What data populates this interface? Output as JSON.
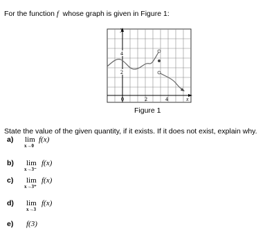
{
  "intro": {
    "before": "For the function",
    "var": "f",
    "after": "whose graph is given in Figure 1:"
  },
  "figure": {
    "y_label": "y",
    "x_label": "x",
    "y_ticks": [
      "4",
      "2"
    ],
    "x_ticks": [
      "0",
      "2",
      "4"
    ],
    "caption": "Figure 1"
  },
  "instruction": "State the value of the given quantity, if it exists. If it does not exist, explain why.",
  "questions": [
    {
      "label": "a)",
      "lim": "lim",
      "sub": "x→0",
      "expr": "f(x)"
    },
    {
      "label": "b)",
      "lim": "lim",
      "sub": "x→3⁻",
      "expr": "f(x)"
    },
    {
      "label": "c)",
      "lim": "lim",
      "sub": "x→3⁺",
      "expr": "f(x)"
    },
    {
      "label": "d)",
      "lim": "lim",
      "sub": "x→3",
      "expr": "f(x)"
    },
    {
      "label": "e)",
      "expr": "f(3)"
    }
  ]
}
